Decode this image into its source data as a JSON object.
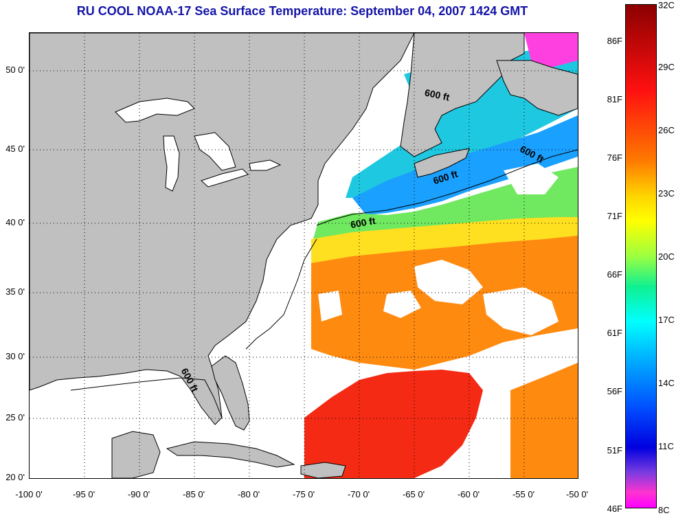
{
  "title": "RU COOL  NOAA-17  Sea Surface Temperature:  September 04, 2007 1424 GMT",
  "map": {
    "lon_range": [
      -100,
      -50
    ],
    "lat_range": [
      20,
      52.5
    ],
    "lat_ticks": [
      "50 0'",
      "45 0'",
      "40 0'",
      "35 0'",
      "30 0'",
      "25 0'",
      "20 0'"
    ],
    "lon_ticks": [
      "-100 0'",
      "-95 0'",
      "-90 0'",
      "-85 0'",
      "-80 0'",
      "-75 0'",
      "-70 0'",
      "-65 0'",
      "-60 0'",
      "-55 0'",
      "-50 0'"
    ],
    "land_color": "#c0c0c0",
    "cloud_color": "#ffffff",
    "grid": "dotted",
    "contour_labels": [
      "600 ft",
      "600 ft",
      "600 ft",
      "600 ft",
      "600 ft"
    ]
  },
  "colorbar": {
    "fahrenheit_labels": [
      "86F",
      "81F",
      "76F",
      "71F",
      "66F",
      "61F",
      "56F",
      "51F",
      "46F"
    ],
    "celsius_labels": [
      "32C",
      "29C",
      "26C",
      "23C",
      "20C",
      "17C",
      "14C",
      "11C",
      "8C"
    ],
    "range_c": [
      8,
      32
    ],
    "colors": [
      "#8b0000",
      "#ff1010",
      "#ff7a00",
      "#ffff00",
      "#10f090",
      "#00ffff",
      "#0050ff",
      "#0000e0",
      "#ff00ff"
    ]
  }
}
